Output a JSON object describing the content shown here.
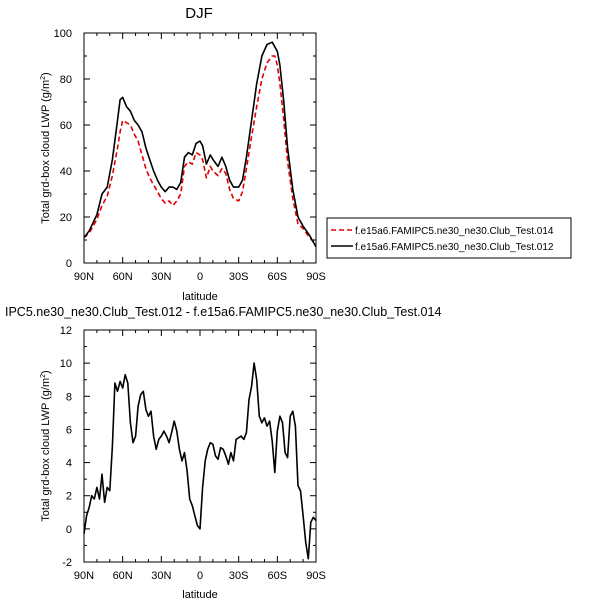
{
  "chart_data": [
    {
      "type": "line",
      "title": "DJF",
      "xlabel": "latitude",
      "ylabel": "Total grd-box cloud LWP (g/m",
      "ylabel_sup": "2",
      "ylabel_close": ")",
      "xlim": [
        90,
        -90
      ],
      "ylim": [
        0,
        100
      ],
      "x_ticks": [
        90,
        60,
        30,
        0,
        -30,
        -60,
        -90
      ],
      "x_tick_labels": [
        "90N",
        "60N",
        "30N",
        "0",
        "30S",
        "60S",
        "90S"
      ],
      "y_ticks": [
        0,
        20,
        40,
        60,
        80,
        100
      ],
      "y_tick_labels": [
        "0",
        "20",
        "40",
        "60",
        "80",
        "100"
      ],
      "legend_position": "right",
      "x": [
        90,
        86,
        80,
        76,
        72,
        68,
        64,
        62,
        60,
        57,
        54,
        51,
        48,
        45,
        42,
        39,
        36,
        33,
        30,
        27,
        24,
        21,
        18,
        15,
        12,
        9,
        6,
        3,
        0,
        -2,
        -5,
        -8,
        -10,
        -14,
        -17,
        -20,
        -23,
        -26,
        -30,
        -33,
        -36,
        -40,
        -44,
        -48,
        -52,
        -56,
        -58,
        -60,
        -62,
        -65,
        -68,
        -72,
        -76,
        -80,
        -85,
        -90
      ],
      "series": [
        {
          "name": "f.e15a6.FAMIPC5.ne30_ne30.Club_Test.014",
          "color": "#e00000",
          "dash": true,
          "values": [
            11,
            13,
            19,
            25,
            29,
            38,
            50,
            57,
            62,
            61,
            60,
            56,
            53,
            47,
            41,
            37,
            34,
            31,
            28,
            26,
            27,
            25,
            27,
            30,
            42,
            44,
            43,
            48,
            47,
            45,
            37,
            42,
            40,
            38,
            41,
            39,
            32,
            28,
            27,
            31,
            41,
            55,
            68,
            80,
            87,
            90,
            90,
            86,
            78,
            62,
            44,
            28,
            17,
            15,
            11,
            8
          ]
        },
        {
          "name": "f.e15a6.FAMIPC5.ne30_ne30.Club_Test.012",
          "color": "#000000",
          "dash": false,
          "values": [
            11,
            14,
            21,
            30,
            33,
            45,
            62,
            71,
            72,
            68,
            66,
            62,
            60,
            57,
            50,
            45,
            40,
            36,
            33,
            31,
            33,
            33,
            32,
            35,
            46,
            48,
            47,
            52,
            53,
            51,
            43,
            47,
            45,
            42,
            46,
            42,
            36,
            33,
            33,
            36,
            46,
            62,
            78,
            90,
            95,
            96,
            94,
            92,
            86,
            70,
            50,
            32,
            20,
            16,
            12,
            7
          ]
        }
      ]
    },
    {
      "type": "line",
      "title": "IPC5.ne30_ne30.Club_Test.012 - f.e15a6.FAMIPC5.ne30_ne30.Club_Test.014",
      "xlabel": "latitude",
      "ylabel": "Total grd-box cloud LWP (g/m",
      "ylabel_sup": "2",
      "ylabel_close": ")",
      "xlim": [
        90,
        -90
      ],
      "ylim": [
        -2,
        12
      ],
      "x_ticks": [
        90,
        60,
        30,
        0,
        -30,
        -60,
        -90
      ],
      "x_tick_labels": [
        "90N",
        "60N",
        "30N",
        "0",
        "30S",
        "60S",
        "90S"
      ],
      "y_ticks": [
        -2,
        0,
        2,
        4,
        6,
        8,
        10,
        12
      ],
      "y_tick_labels": [
        "-2",
        "0",
        "2",
        "4",
        "6",
        "8",
        "10",
        "12"
      ],
      "x": [
        90,
        88,
        86,
        84,
        82,
        80,
        78,
        76,
        74,
        72,
        70,
        68,
        66,
        64,
        62,
        60,
        58,
        56,
        54,
        52,
        50,
        48,
        46,
        44,
        42,
        40,
        38,
        36,
        34,
        32,
        30,
        28,
        26,
        24,
        22,
        20,
        18,
        16,
        14,
        12,
        10,
        8,
        6,
        4,
        2,
        0,
        -2,
        -4,
        -6,
        -8,
        -10,
        -12,
        -14,
        -16,
        -18,
        -20,
        -22,
        -24,
        -26,
        -28,
        -30,
        -32,
        -34,
        -36,
        -38,
        -40,
        -42,
        -44,
        -46,
        -48,
        -50,
        -52,
        -54,
        -56,
        -58,
        -60,
        -62,
        -64,
        -66,
        -68,
        -70,
        -72,
        -74,
        -76,
        -78,
        -80,
        -82,
        -84,
        -86,
        -88,
        -90
      ],
      "series": [
        {
          "name": "",
          "color": "#000000",
          "dash": false,
          "values": [
            -0.3,
            0.8,
            1.3,
            2.0,
            1.8,
            2.5,
            1.8,
            3.3,
            1.6,
            2.5,
            2.3,
            5.0,
            8.8,
            8.3,
            8.9,
            8.5,
            9.3,
            8.8,
            6.4,
            5.2,
            5.6,
            7.4,
            8.1,
            8.3,
            7.2,
            6.8,
            7.1,
            5.6,
            4.8,
            5.4,
            5.6,
            5.9,
            5.6,
            5.2,
            5.8,
            6.5,
            5.9,
            4.8,
            4.1,
            4.6,
            3.5,
            1.8,
            1.4,
            0.8,
            0.2,
            0.0,
            2.5,
            4.1,
            4.8,
            5.2,
            5.1,
            4.4,
            4.2,
            4.9,
            4.8,
            4.4,
            3.9,
            4.6,
            4.1,
            5.4,
            5.5,
            5.6,
            5.4,
            5.8,
            7.8,
            8.6,
            10.0,
            9.0,
            6.8,
            6.4,
            6.7,
            6.2,
            6.5,
            5.3,
            3.4,
            5.9,
            6.8,
            6.4,
            4.6,
            4.3,
            6.8,
            7.1,
            6.2,
            2.6,
            2.3,
            0.8,
            -0.8,
            -1.8,
            0.4,
            0.7,
            0.5
          ]
        }
      ]
    }
  ]
}
